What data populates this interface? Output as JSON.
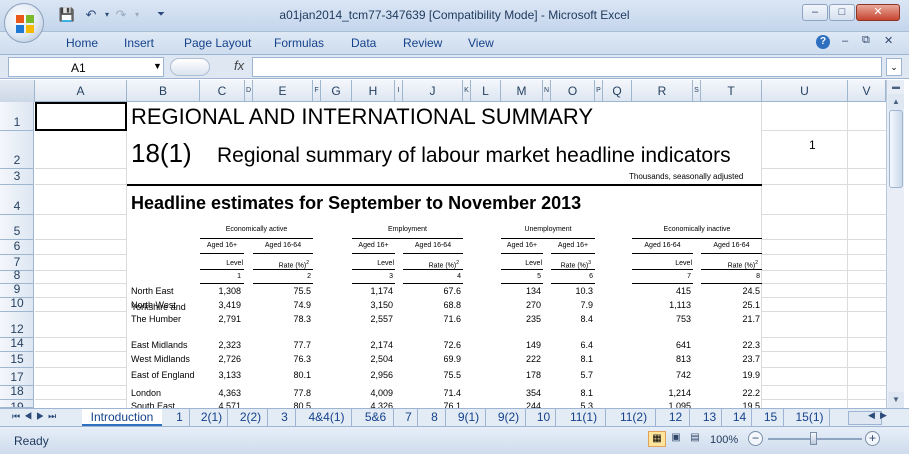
{
  "window": {
    "title": "a01jan2014_tcm77-347639  [Compatibility Mode] - Microsoft Excel",
    "controls": [
      "–",
      "□",
      "✕"
    ]
  },
  "ribbon": {
    "tabs": [
      "Home",
      "Insert",
      "Page Layout",
      "Formulas",
      "Data",
      "Review",
      "View"
    ]
  },
  "formula_bar": {
    "name_box": "A1",
    "fx": "fx",
    "content": ""
  },
  "columns": [
    "A",
    "B",
    "C",
    "D",
    "E",
    "F",
    "G",
    "H",
    "I",
    "J",
    "K",
    "L",
    "M",
    "N",
    "O",
    "P",
    "Q",
    "R",
    "S",
    "T",
    "U",
    "V"
  ],
  "rows": [
    "1",
    "2",
    "3",
    "4",
    "5",
    "6",
    "7",
    "8",
    "9",
    "10",
    "12",
    "14",
    "15",
    "17",
    "18",
    "19"
  ],
  "sheet": {
    "title": "REGIONAL AND INTERNATIONAL SUMMARY",
    "table_no": "18(1)",
    "subtitle": "Regional summary of labour market headline indicators",
    "subtitle_sup": "1",
    "note": "Thousands, seasonally adjusted",
    "headline": "Headline estimates for September to November 2013",
    "groups": {
      "econ_active": "Economically active",
      "employment": "Employment",
      "unemployment": "Unemployment",
      "econ_inactive": "Economically inactive"
    },
    "sub": {
      "aged16": "Aged 16+",
      "aged1664": "Aged 16-64",
      "level": "Level",
      "rate": "Rate (%)",
      "sup2": "2",
      "sup3": "3"
    },
    "col_nums": [
      "1",
      "2",
      "3",
      "4",
      "5",
      "6",
      "7",
      "8"
    ],
    "regions": [
      {
        "name": "North East",
        "v": [
          "1,308",
          "75.5",
          "1,174",
          "67.6",
          "134",
          "10.3",
          "415",
          "24.5"
        ]
      },
      {
        "name": "North West",
        "v": [
          "3,419",
          "74.9",
          "3,150",
          "68.8",
          "270",
          "7.9",
          "1,113",
          "25.1"
        ]
      },
      {
        "name": "Yorkshire and",
        "name2": "The Humber",
        "v": [
          "2,791",
          "78.3",
          "2,557",
          "71.6",
          "235",
          "8.4",
          "753",
          "21.7"
        ]
      },
      {
        "name": "East Midlands",
        "v": [
          "2,323",
          "77.7",
          "2,174",
          "72.6",
          "149",
          "6.4",
          "641",
          "22.3"
        ]
      },
      {
        "name": "West Midlands",
        "v": [
          "2,726",
          "76.3",
          "2,504",
          "69.9",
          "222",
          "8.1",
          "813",
          "23.7"
        ]
      },
      {
        "name": "East of England",
        "v": [
          "3,133",
          "80.1",
          "2,956",
          "75.5",
          "178",
          "5.7",
          "742",
          "19.9"
        ]
      },
      {
        "name": "London",
        "v": [
          "4,363",
          "77.8",
          "4,009",
          "71.4",
          "354",
          "8.1",
          "1,214",
          "22.2"
        ]
      },
      {
        "name": "South East",
        "v": [
          "4,571",
          "80.5",
          "4,326",
          "76.1",
          "244",
          "5.3",
          "1,095",
          "19.5"
        ]
      }
    ]
  },
  "sheet_tabs": [
    "Introduction",
    "1",
    "2(1)",
    "2(2)",
    "3",
    "4&4(1)",
    "5&6",
    "7",
    "8",
    "9(1)",
    "9(2)",
    "10",
    "11(1)",
    "11(2)",
    "12",
    "13",
    "14",
    "15",
    "15(1)"
  ],
  "status": {
    "ready": "Ready",
    "zoom": "100%"
  }
}
